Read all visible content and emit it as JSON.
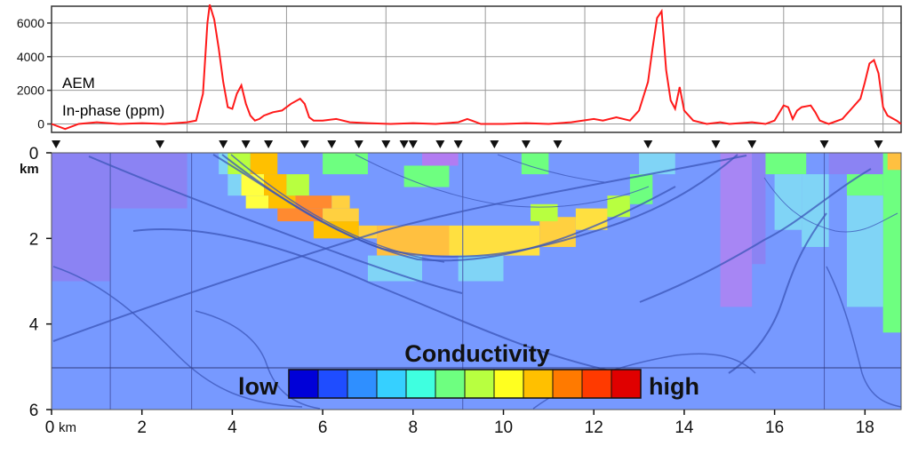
{
  "chart_data": [
    {
      "type": "line",
      "annotation_lines": [
        "AEM",
        "In-phase (ppm)"
      ],
      "xlim": [
        0,
        18.8
      ],
      "ylim": [
        -500,
        7000
      ],
      "yticks": [
        0,
        2000,
        4000,
        6000
      ],
      "ytick_labels": [
        "0",
        "2000",
        "4000",
        "6000"
      ],
      "x_gridlines": [
        3.0,
        5.2,
        7.4,
        9.6,
        11.8,
        14.0,
        16.2,
        18.4
      ],
      "grid": true,
      "line_color": "#ff1a1a",
      "series": [
        {
          "x": [
            0,
            0.3,
            0.6,
            1.0,
            1.5,
            2.0,
            2.5,
            3.0,
            3.2,
            3.35,
            3.45,
            3.5,
            3.6,
            3.7,
            3.8,
            3.9,
            4.0,
            4.1,
            4.2,
            4.3,
            4.4,
            4.5,
            4.6,
            4.7,
            4.9,
            5.1,
            5.3,
            5.5,
            5.6,
            5.7,
            5.8,
            6.0,
            6.3,
            6.6,
            7.0,
            7.5,
            8.0,
            8.5,
            9.0,
            9.2,
            9.3,
            9.5,
            10.0,
            10.5,
            11.0,
            11.5,
            12.0,
            12.2,
            12.5,
            12.8,
            13.0,
            13.2,
            13.3,
            13.4,
            13.5,
            13.6,
            13.7,
            13.8,
            13.9,
            14.0,
            14.2,
            14.5,
            14.8,
            15.0,
            15.5,
            15.8,
            16.0,
            16.2,
            16.3,
            16.4,
            16.5,
            16.6,
            16.8,
            16.9,
            17.0,
            17.2,
            17.5,
            17.7,
            17.9,
            18.0,
            18.1,
            18.2,
            18.3,
            18.4,
            18.5,
            18.7,
            18.8
          ],
          "values": [
            0,
            -300,
            0,
            100,
            0,
            50,
            0,
            100,
            200,
            1800,
            6000,
            7100,
            6200,
            4500,
            2500,
            1000,
            900,
            1800,
            2300,
            1200,
            500,
            200,
            300,
            500,
            700,
            800,
            1200,
            1500,
            1200,
            400,
            200,
            200,
            300,
            100,
            50,
            0,
            50,
            0,
            100,
            300,
            200,
            0,
            0,
            50,
            0,
            100,
            300,
            200,
            400,
            200,
            800,
            2500,
            4500,
            6300,
            6700,
            3200,
            1400,
            900,
            2200,
            800,
            200,
            0,
            100,
            0,
            100,
            0,
            200,
            1100,
            1000,
            300,
            800,
            1000,
            1100,
            700,
            200,
            0,
            300,
            900,
            1500,
            2500,
            3600,
            3800,
            3000,
            1000,
            500,
            200,
            0
          ]
        }
      ]
    },
    {
      "type": "heatmap",
      "description": "Conductivity depth section",
      "xlim": [
        0,
        18.8
      ],
      "ylim": [
        0,
        6
      ],
      "xticks": [
        0,
        2,
        4,
        6,
        8,
        10,
        12,
        14,
        16,
        18
      ],
      "xtick_labels": [
        "0",
        "2",
        "4",
        "6",
        "8",
        "10",
        "12",
        "14",
        "16",
        "18"
      ],
      "x_unit_label": "km",
      "yticks": [
        0,
        2,
        4,
        6
      ],
      "ytick_labels": [
        "0",
        "2",
        "4",
        "6"
      ],
      "y_unit_label": "km",
      "colorbar": {
        "title": "Conductivity",
        "low_label": "low",
        "high_label": "high",
        "n_bins": 12,
        "colors": [
          "#0000d8",
          "#1f4dff",
          "#2f8fff",
          "#36d0ff",
          "#3fffe0",
          "#6eff80",
          "#b8ff40",
          "#ffff20",
          "#ffc000",
          "#ff7a00",
          "#ff3a00",
          "#e00000"
        ]
      },
      "station_markers_km": [
        0.1,
        2.4,
        3.8,
        4.3,
        4.8,
        5.6,
        6.2,
        6.8,
        7.4,
        7.8,
        8.0,
        8.6,
        9.0,
        9.8,
        10.5,
        11.2,
        13.2,
        14.7,
        15.5,
        17.1,
        18.3
      ],
      "background_color": "#7799ff",
      "cells": [
        {
          "x0": 0.0,
          "x1": 1.3,
          "y0": 0.0,
          "y1": 3.0,
          "color": "#8b83f3"
        },
        {
          "x0": 1.3,
          "x1": 3.0,
          "y0": 0.0,
          "y1": 1.3,
          "color": "#8b83f3"
        },
        {
          "x0": 3.7,
          "x1": 3.9,
          "y0": 0.0,
          "y1": 0.5,
          "color": "#80d4f6"
        },
        {
          "x0": 3.9,
          "x1": 4.4,
          "y0": 0.0,
          "y1": 0.5,
          "color": "#b8ff40"
        },
        {
          "x0": 4.4,
          "x1": 5.0,
          "y0": 0.0,
          "y1": 0.5,
          "color": "#ffc000"
        },
        {
          "x0": 3.9,
          "x1": 4.2,
          "y0": 0.5,
          "y1": 1.0,
          "color": "#80d4f6"
        },
        {
          "x0": 4.2,
          "x1": 4.7,
          "y0": 0.5,
          "y1": 1.0,
          "color": "#ffff40"
        },
        {
          "x0": 4.7,
          "x1": 5.2,
          "y0": 0.5,
          "y1": 1.0,
          "color": "#ffc000"
        },
        {
          "x0": 5.2,
          "x1": 5.7,
          "y0": 0.5,
          "y1": 1.0,
          "color": "#b8ff40"
        },
        {
          "x0": 4.3,
          "x1": 4.8,
          "y0": 1.0,
          "y1": 1.3,
          "color": "#ffff40"
        },
        {
          "x0": 4.8,
          "x1": 5.4,
          "y0": 1.0,
          "y1": 1.3,
          "color": "#ffc000"
        },
        {
          "x0": 5.4,
          "x1": 6.2,
          "y0": 1.0,
          "y1": 1.3,
          "color": "#ff8a30"
        },
        {
          "x0": 6.2,
          "x1": 6.6,
          "y0": 1.0,
          "y1": 1.3,
          "color": "#ffd040"
        },
        {
          "x0": 5.0,
          "x1": 6.0,
          "y0": 1.3,
          "y1": 1.6,
          "color": "#ff8a30"
        },
        {
          "x0": 6.0,
          "x1": 6.8,
          "y0": 1.3,
          "y1": 1.6,
          "color": "#ffd040"
        },
        {
          "x0": 5.8,
          "x1": 6.8,
          "y0": 1.6,
          "y1": 2.0,
          "color": "#ffc000"
        },
        {
          "x0": 6.8,
          "x1": 7.2,
          "y0": 1.7,
          "y1": 2.0,
          "color": "#ffd040"
        },
        {
          "x0": 7.2,
          "x1": 8.8,
          "y0": 1.7,
          "y1": 2.4,
          "color": "#ffc040"
        },
        {
          "x0": 8.8,
          "x1": 10.8,
          "y0": 1.7,
          "y1": 2.4,
          "color": "#ffe040"
        },
        {
          "x0": 10.8,
          "x1": 11.6,
          "y0": 1.5,
          "y1": 2.2,
          "color": "#ffd040"
        },
        {
          "x0": 11.6,
          "x1": 12.3,
          "y0": 1.3,
          "y1": 1.8,
          "color": "#ffe040"
        },
        {
          "x0": 12.3,
          "x1": 12.8,
          "y0": 1.0,
          "y1": 1.5,
          "color": "#b8ff40"
        },
        {
          "x0": 12.8,
          "x1": 13.3,
          "y0": 0.5,
          "y1": 1.2,
          "color": "#6eff80"
        },
        {
          "x0": 10.6,
          "x1": 11.2,
          "y0": 1.2,
          "y1": 1.6,
          "color": "#b8ff40"
        },
        {
          "x0": 6.0,
          "x1": 7.0,
          "y0": 0.0,
          "y1": 0.5,
          "color": "#6eff80"
        },
        {
          "x0": 7.8,
          "x1": 8.8,
          "y0": 0.3,
          "y1": 0.8,
          "color": "#6eff80"
        },
        {
          "x0": 8.2,
          "x1": 9.0,
          "y0": 0.0,
          "y1": 0.3,
          "color": "#b27cf2"
        },
        {
          "x0": 10.4,
          "x1": 11.0,
          "y0": 0.0,
          "y1": 0.5,
          "color": "#6eff80"
        },
        {
          "x0": 13.0,
          "x1": 13.8,
          "y0": 0.0,
          "y1": 0.5,
          "color": "#80d4f6"
        },
        {
          "x0": 7.0,
          "x1": 8.2,
          "y0": 2.4,
          "y1": 3.0,
          "color": "#80d4f6"
        },
        {
          "x0": 9.0,
          "x1": 10.0,
          "y0": 2.4,
          "y1": 3.0,
          "color": "#80d4f6"
        },
        {
          "x0": 14.8,
          "x1": 15.5,
          "y0": 0.0,
          "y1": 3.6,
          "color": "#a786f4"
        },
        {
          "x0": 15.5,
          "x1": 15.8,
          "y0": 0.0,
          "y1": 2.6,
          "color": "#8b83f3"
        },
        {
          "x0": 15.8,
          "x1": 16.7,
          "y0": 0.0,
          "y1": 0.5,
          "color": "#6eff80"
        },
        {
          "x0": 16.0,
          "x1": 16.6,
          "y0": 0.5,
          "y1": 1.8,
          "color": "#80d4f6"
        },
        {
          "x0": 16.6,
          "x1": 17.2,
          "y0": 0.5,
          "y1": 2.2,
          "color": "#80d4f6"
        },
        {
          "x0": 17.2,
          "x1": 18.4,
          "y0": 0.0,
          "y1": 0.5,
          "color": "#8b83f3"
        },
        {
          "x0": 17.6,
          "x1": 18.4,
          "y0": 0.5,
          "y1": 1.0,
          "color": "#6eff80"
        },
        {
          "x0": 18.4,
          "x1": 18.8,
          "y0": 0.0,
          "y1": 4.2,
          "color": "#6eff80"
        },
        {
          "x0": 18.5,
          "x1": 18.8,
          "y0": 0.0,
          "y1": 0.4,
          "color": "#ffc040"
        },
        {
          "x0": 17.6,
          "x1": 18.4,
          "y0": 1.0,
          "y1": 3.6,
          "color": "#80d4f6"
        }
      ]
    }
  ]
}
